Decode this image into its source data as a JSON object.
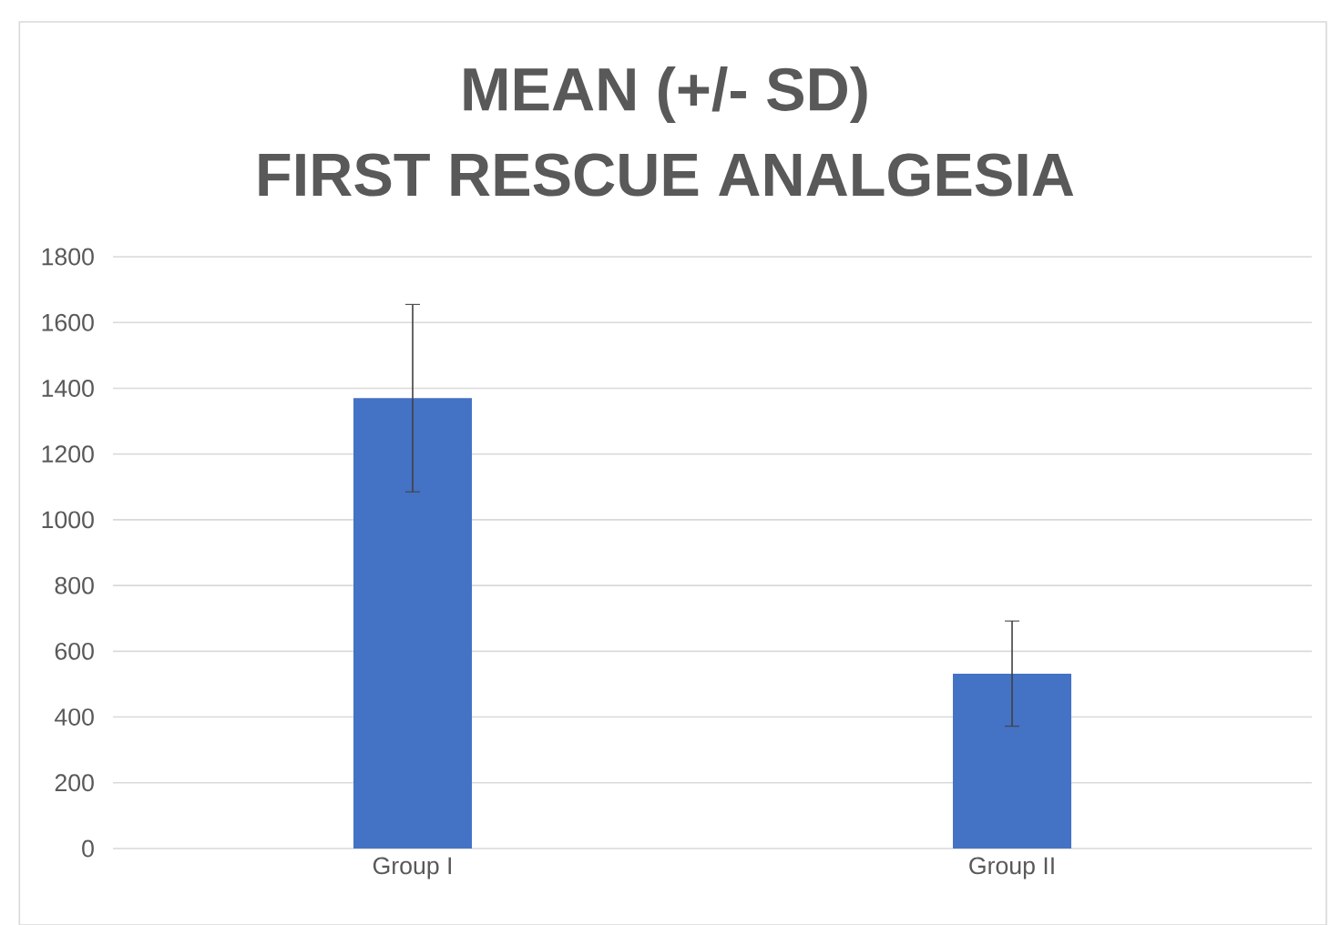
{
  "chart_data": {
    "type": "bar",
    "title": "MEAN (+/- SD)",
    "subtitle": "FIRST RESCUE ANALGESIA",
    "categories": [
      "Group I",
      "Group II"
    ],
    "values": [
      1370,
      532
    ],
    "errors": [
      285,
      160
    ],
    "color": "#4472c4",
    "ylim": [
      0,
      1800
    ],
    "yticks": [
      0,
      200,
      400,
      600,
      800,
      1000,
      1200,
      1400,
      1600,
      1800
    ],
    "grid": "y",
    "legend": false
  }
}
